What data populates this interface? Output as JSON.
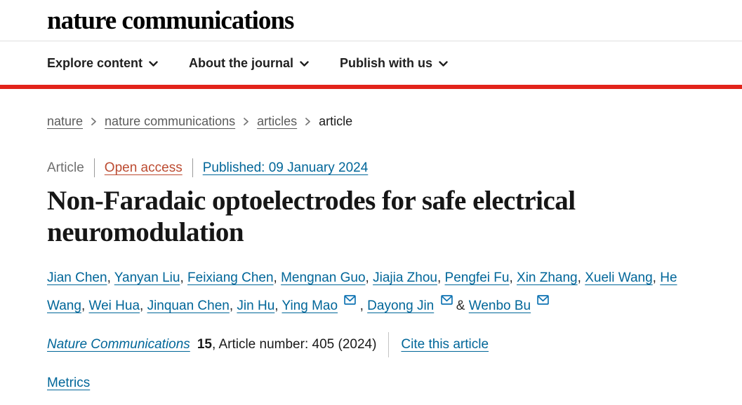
{
  "header": {
    "logo_text": "nature communications"
  },
  "nav": {
    "items": [
      {
        "label": "Explore content",
        "icon": "chevron-down-icon"
      },
      {
        "label": "About the journal",
        "icon": "chevron-down-icon"
      },
      {
        "label": "Publish with us",
        "icon": "chevron-down-icon"
      }
    ]
  },
  "breadcrumb": {
    "items": [
      {
        "label": "nature",
        "link": true
      },
      {
        "label": "nature communications",
        "link": true
      },
      {
        "label": "articles",
        "link": true
      },
      {
        "label": "article",
        "link": false
      }
    ]
  },
  "article_meta": {
    "type_label": "Article",
    "access_label": "Open access",
    "published_label": "Published: 09 January 2024"
  },
  "article": {
    "title": "Non-Faradaic optoelectrodes for safe electrical neuromodulation"
  },
  "authors": {
    "list": [
      {
        "name": "Jian Chen",
        "email_icon": false
      },
      {
        "name": "Yanyan Liu",
        "email_icon": false
      },
      {
        "name": "Feixiang Chen",
        "email_icon": false
      },
      {
        "name": "Mengnan Guo",
        "email_icon": false
      },
      {
        "name": "Jiajia Zhou",
        "email_icon": false
      },
      {
        "name": "Pengfei Fu",
        "email_icon": false
      },
      {
        "name": "Xin Zhang",
        "email_icon": false
      },
      {
        "name": "Xueli Wang",
        "email_icon": false
      },
      {
        "name": "He Wang",
        "email_icon": false
      },
      {
        "name": "Wei Hua",
        "email_icon": false
      },
      {
        "name": "Jinquan Chen",
        "email_icon": false
      },
      {
        "name": "Jin Hu",
        "email_icon": false
      },
      {
        "name": "Ying Mao",
        "email_icon": true
      },
      {
        "name": "Dayong Jin",
        "email_icon": true
      },
      {
        "name": "Wenbo Bu",
        "email_icon": true
      }
    ],
    "separator": ", ",
    "last_separator": " & "
  },
  "journal_info": {
    "journal_name": "Nature Communications",
    "volume": "15",
    "article_number_text": ", Article number: 405 (2024)",
    "cite_label": "Cite this article"
  },
  "links": {
    "metrics_label": "Metrics"
  },
  "colors": {
    "accent_red": "#e2231a",
    "link_blue": "#006699",
    "open_access_red": "#bc4b31"
  }
}
